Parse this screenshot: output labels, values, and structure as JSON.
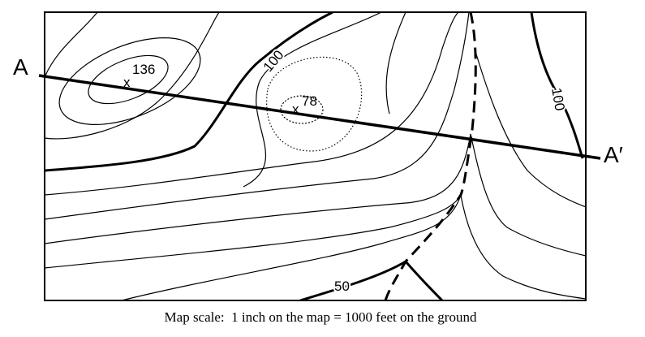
{
  "profile": {
    "start": "A",
    "end": "A′"
  },
  "spot_heights": [
    {
      "label": 136
    },
    {
      "label": 78
    }
  ],
  "contour_labels": [
    100,
    100,
    50
  ],
  "caption": "Map scale:  1 inch on the map = 1000 feet on the ground"
}
